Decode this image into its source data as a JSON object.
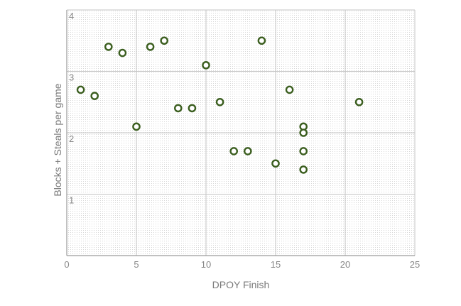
{
  "chart_data": {
    "type": "scatter",
    "title": "",
    "xlabel": "DPOY Finish",
    "ylabel": "Blocks + Steals per game",
    "xlim": [
      0,
      25
    ],
    "ylim": [
      0,
      4
    ],
    "xticks": [
      0,
      5,
      10,
      15,
      20,
      25
    ],
    "yticks": [
      1,
      2,
      3,
      4
    ],
    "grid": true,
    "legend": "none",
    "marker_color": "#3b5e1f",
    "points": [
      {
        "x": 1,
        "y": 2.7
      },
      {
        "x": 2,
        "y": 2.6
      },
      {
        "x": 3,
        "y": 3.4
      },
      {
        "x": 4,
        "y": 3.3
      },
      {
        "x": 5,
        "y": 2.1
      },
      {
        "x": 6,
        "y": 3.4
      },
      {
        "x": 7,
        "y": 3.5
      },
      {
        "x": 8,
        "y": 2.4
      },
      {
        "x": 9,
        "y": 2.4
      },
      {
        "x": 10,
        "y": 3.1
      },
      {
        "x": 11,
        "y": 2.5
      },
      {
        "x": 12,
        "y": 1.7
      },
      {
        "x": 13,
        "y": 1.7
      },
      {
        "x": 14,
        "y": 3.5
      },
      {
        "x": 15,
        "y": 1.5
      },
      {
        "x": 16,
        "y": 2.7
      },
      {
        "x": 17,
        "y": 2.1
      },
      {
        "x": 17,
        "y": 2.0
      },
      {
        "x": 17,
        "y": 1.7
      },
      {
        "x": 17,
        "y": 1.4
      },
      {
        "x": 21,
        "y": 2.5
      }
    ]
  }
}
